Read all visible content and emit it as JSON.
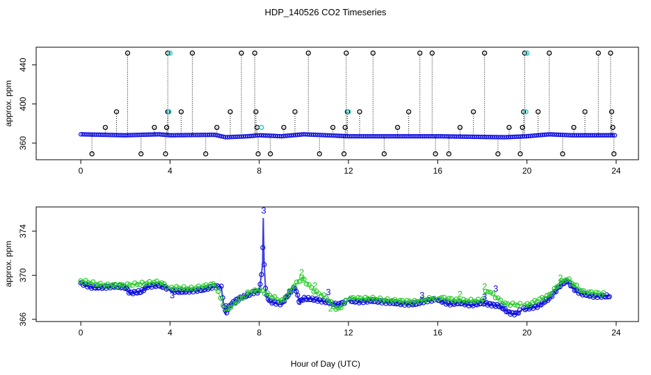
{
  "title": "HDP_140526  CO2 Timeseries",
  "xlabel": "Hour of Day (UTC)",
  "colors": {
    "primary": "#1010e0",
    "secondary": "#22cc22",
    "highlight": "#22cccc",
    "outlier": "#000000"
  },
  "chart_data": [
    {
      "type": "scatter",
      "ylabel": "approx. ppm",
      "xlim": [
        -2,
        25
      ],
      "ylim": [
        343,
        458
      ],
      "x_ticks": [
        "0",
        "4",
        "8",
        "12",
        "16",
        "20",
        "24"
      ],
      "y_ticks": [
        "360",
        "400",
        "440"
      ],
      "baseline": [
        [
          0,
          369
        ],
        [
          2,
          368
        ],
        [
          3.5,
          369
        ],
        [
          4,
          368
        ],
        [
          6,
          368.5
        ],
        [
          6.5,
          366
        ],
        [
          7.5,
          367
        ],
        [
          8,
          368
        ],
        [
          9,
          367
        ],
        [
          10,
          369
        ],
        [
          12,
          367
        ],
        [
          16,
          367
        ],
        [
          19,
          366
        ],
        [
          20,
          367
        ],
        [
          21,
          369
        ],
        [
          22,
          368
        ],
        [
          24,
          368
        ]
      ],
      "outlier_points": [
        {
          "x": 0.5,
          "y": 349
        },
        {
          "x": 1.1,
          "y": 376
        },
        {
          "x": 1.6,
          "y": 392
        },
        {
          "x": 2.1,
          "y": 452
        },
        {
          "x": 2.7,
          "y": 349
        },
        {
          "x": 3.3,
          "y": 376
        },
        {
          "x": 3.8,
          "y": 349
        },
        {
          "x": 3.85,
          "y": 376
        },
        {
          "x": 3.9,
          "y": 392
        },
        {
          "x": 3.9,
          "y": 452
        },
        {
          "x": 4.5,
          "y": 392
        },
        {
          "x": 5.0,
          "y": 452
        },
        {
          "x": 5.6,
          "y": 349
        },
        {
          "x": 6.1,
          "y": 376
        },
        {
          "x": 6.7,
          "y": 392
        },
        {
          "x": 7.2,
          "y": 452
        },
        {
          "x": 7.8,
          "y": 452
        },
        {
          "x": 7.85,
          "y": 392
        },
        {
          "x": 7.9,
          "y": 376
        },
        {
          "x": 7.95,
          "y": 349
        },
        {
          "x": 8.5,
          "y": 349
        },
        {
          "x": 9.1,
          "y": 376
        },
        {
          "x": 9.6,
          "y": 392
        },
        {
          "x": 10.2,
          "y": 452
        },
        {
          "x": 10.7,
          "y": 349
        },
        {
          "x": 11.3,
          "y": 376
        },
        {
          "x": 11.8,
          "y": 349
        },
        {
          "x": 11.85,
          "y": 376
        },
        {
          "x": 11.9,
          "y": 452
        },
        {
          "x": 11.95,
          "y": 392
        },
        {
          "x": 12.5,
          "y": 392
        },
        {
          "x": 13.1,
          "y": 452
        },
        {
          "x": 13.6,
          "y": 349
        },
        {
          "x": 14.2,
          "y": 376
        },
        {
          "x": 14.7,
          "y": 392
        },
        {
          "x": 15.2,
          "y": 452
        },
        {
          "x": 15.75,
          "y": 452
        },
        {
          "x": 15.9,
          "y": 349
        },
        {
          "x": 16.5,
          "y": 349
        },
        {
          "x": 17.0,
          "y": 376
        },
        {
          "x": 17.6,
          "y": 392
        },
        {
          "x": 18.1,
          "y": 452
        },
        {
          "x": 18.7,
          "y": 349
        },
        {
          "x": 19.2,
          "y": 376
        },
        {
          "x": 19.7,
          "y": 349
        },
        {
          "x": 19.8,
          "y": 376
        },
        {
          "x": 19.85,
          "y": 392
        },
        {
          "x": 19.9,
          "y": 452
        },
        {
          "x": 20.5,
          "y": 392
        },
        {
          "x": 21.0,
          "y": 452
        },
        {
          "x": 21.6,
          "y": 349
        },
        {
          "x": 22.1,
          "y": 376
        },
        {
          "x": 22.6,
          "y": 392
        },
        {
          "x": 23.2,
          "y": 452
        },
        {
          "x": 23.75,
          "y": 452
        },
        {
          "x": 23.8,
          "y": 392
        },
        {
          "x": 23.85,
          "y": 376
        },
        {
          "x": 23.9,
          "y": 349
        }
      ],
      "highlight_points": [
        {
          "x": 3.95,
          "y": 392
        },
        {
          "x": 4.0,
          "y": 452
        },
        {
          "x": 12.0,
          "y": 392
        },
        {
          "x": 19.95,
          "y": 392
        },
        {
          "x": 20.0,
          "y": 452
        },
        {
          "x": 8.1,
          "y": 376
        }
      ]
    },
    {
      "type": "scatter",
      "ylabel": "approx. ppm",
      "xlim": [
        -2,
        25
      ],
      "ylim": [
        365.8,
        376.2
      ],
      "x_ticks": [
        "0",
        "4",
        "8",
        "12",
        "16",
        "20",
        "24"
      ],
      "y_ticks": [
        "366",
        "370",
        "374"
      ],
      "series": [
        {
          "key": "primary",
          "values": [
            [
              0,
              369.3
            ],
            [
              0.5,
              368.9
            ],
            [
              1,
              368.9
            ],
            [
              1.5,
              369
            ],
            [
              2,
              368.9
            ],
            [
              2.2,
              368.4
            ],
            [
              2.7,
              368.5
            ],
            [
              3,
              369
            ],
            [
              3.5,
              369.1
            ],
            [
              3.9,
              368.8
            ],
            [
              4,
              368.6
            ],
            [
              4.5,
              368.5
            ],
            [
              5,
              368.6
            ],
            [
              5.5,
              368.7
            ],
            [
              6,
              369
            ],
            [
              6.3,
              368.9
            ],
            [
              6.4,
              367.4
            ],
            [
              6.5,
              366.5
            ],
            [
              6.7,
              367.3
            ],
            [
              7,
              367.8
            ],
            [
              7.5,
              368.2
            ],
            [
              7.8,
              368.5
            ],
            [
              8,
              368.5
            ],
            [
              8.15,
              371
            ],
            [
              8.18,
              375.2
            ],
            [
              8.22,
              371
            ],
            [
              8.3,
              368.2
            ],
            [
              8.5,
              367.6
            ],
            [
              9,
              367.4
            ],
            [
              9.4,
              368.5
            ],
            [
              9.6,
              368.9
            ],
            [
              9.8,
              367.6
            ],
            [
              10,
              367.9
            ],
            [
              10.5,
              367.8
            ],
            [
              11,
              367.6
            ],
            [
              11.5,
              367.3
            ],
            [
              12,
              367.7
            ],
            [
              12.5,
              367.6
            ],
            [
              13,
              367.7
            ],
            [
              13.5,
              367.6
            ],
            [
              14,
              367.5
            ],
            [
              14.5,
              367.4
            ],
            [
              15,
              367.4
            ],
            [
              15.5,
              367.7
            ],
            [
              16,
              367.8
            ],
            [
              16.5,
              367.4
            ],
            [
              17,
              367.5
            ],
            [
              17.5,
              367.3
            ],
            [
              18,
              367.5
            ],
            [
              18.5,
              367.3
            ],
            [
              18.8,
              367.2
            ],
            [
              19.2,
              366.6
            ],
            [
              19.5,
              366.5
            ],
            [
              19.8,
              366.9
            ],
            [
              20,
              367
            ],
            [
              20.5,
              367.2
            ],
            [
              21,
              367.9
            ],
            [
              21.5,
              369.1
            ],
            [
              21.8,
              369.5
            ],
            [
              22.2,
              368.6
            ],
            [
              22.5,
              368.3
            ],
            [
              23,
              368.1
            ],
            [
              23.5,
              368.1
            ],
            [
              23.7,
              368.1
            ]
          ]
        },
        {
          "key": "secondary",
          "values": [
            [
              0,
              369.5
            ],
            [
              1,
              369.1
            ],
            [
              2,
              369.1
            ],
            [
              3,
              369.3
            ],
            [
              3.5,
              369.4
            ],
            [
              4,
              368.9
            ],
            [
              5,
              368.8
            ],
            [
              6,
              369.2
            ],
            [
              6.5,
              366.8
            ],
            [
              7.5,
              368.4
            ],
            [
              8,
              368.7
            ],
            [
              9,
              367.6
            ],
            [
              9.6,
              369.1
            ],
            [
              9.9,
              369.8
            ],
            [
              10.5,
              368.5
            ],
            [
              11,
              368
            ],
            [
              11.5,
              366.8
            ],
            [
              12,
              367.9
            ],
            [
              13,
              367.9
            ],
            [
              14,
              367.7
            ],
            [
              15,
              367.6
            ],
            [
              16,
              368
            ],
            [
              17,
              367.7
            ],
            [
              18,
              367.7
            ],
            [
              18.2,
              368.7
            ],
            [
              19,
              367.4
            ],
            [
              20,
              367.3
            ],
            [
              21,
              368.2
            ],
            [
              21.5,
              369.3
            ],
            [
              21.8,
              369.7
            ],
            [
              22.5,
              368.5
            ],
            [
              23.5,
              368.3
            ]
          ]
        }
      ],
      "marker_labels": [
        {
          "text": "3",
          "x": 8.2,
          "y": 375.6,
          "key": "primary"
        },
        {
          "text": "3",
          "x": 4.1,
          "y": 367.9,
          "key": "primary"
        },
        {
          "text": "3",
          "x": 6.5,
          "y": 366.9,
          "key": "primary"
        },
        {
          "text": "3",
          "x": 9.8,
          "y": 367.3,
          "key": "primary"
        },
        {
          "text": "3",
          "x": 11.1,
          "y": 368.2,
          "key": "primary"
        },
        {
          "text": "3",
          "x": 15.3,
          "y": 367.9,
          "key": "primary"
        },
        {
          "text": "3",
          "x": 18.1,
          "y": 367.8,
          "key": "primary"
        },
        {
          "text": "3",
          "x": 18.6,
          "y": 368.5,
          "key": "primary"
        },
        {
          "text": "2",
          "x": 9.9,
          "y": 370
        },
        {
          "text": "2",
          "x": 9.95,
          "y": 369.3
        },
        {
          "text": "2",
          "x": 10.5,
          "y": 368.8
        },
        {
          "text": "2",
          "x": 11.2,
          "y": 366.7
        },
        {
          "text": "2",
          "x": 18.1,
          "y": 368.7
        },
        {
          "text": "2",
          "x": 17.0,
          "y": 368
        },
        {
          "text": "2",
          "x": 21.5,
          "y": 369.5
        }
      ]
    }
  ]
}
